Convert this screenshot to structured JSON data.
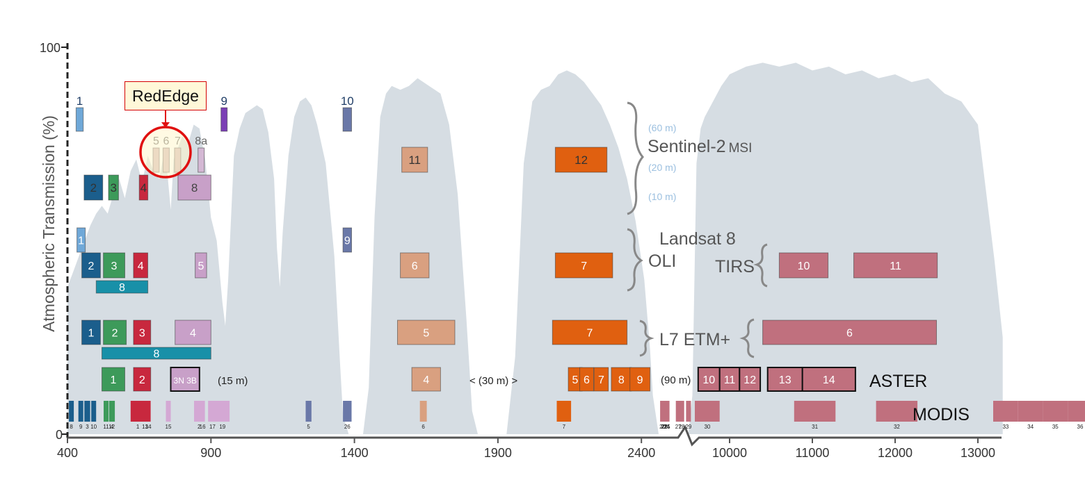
{
  "chart_data": {
    "type": "spectral band diagram",
    "ylabel": "Atmospheric Transmission (%)",
    "y_ticks": [
      "100",
      "0"
    ],
    "ylim": [
      0,
      100
    ],
    "x_ticks": [
      "400",
      "900",
      "1400",
      "1900",
      "2400",
      "10000",
      "11000",
      "12000",
      "13000"
    ],
    "x_axis_break": "between 2400 and 10000 (nm)",
    "transmission_curve": [
      [
        400,
        38
      ],
      [
        420,
        42
      ],
      [
        440,
        46
      ],
      [
        460,
        50
      ],
      [
        480,
        54
      ],
      [
        500,
        57
      ],
      [
        520,
        59
      ],
      [
        540,
        57
      ],
      [
        560,
        62
      ],
      [
        580,
        66
      ],
      [
        600,
        61
      ],
      [
        620,
        68
      ],
      [
        640,
        71
      ],
      [
        660,
        65
      ],
      [
        680,
        72
      ],
      [
        700,
        68
      ],
      [
        720,
        66
      ],
      [
        740,
        74
      ],
      [
        760,
        58
      ],
      [
        770,
        71
      ],
      [
        800,
        77
      ],
      [
        820,
        75
      ],
      [
        840,
        80
      ],
      [
        860,
        79
      ],
      [
        880,
        71
      ],
      [
        900,
        56
      ],
      [
        920,
        50
      ],
      [
        940,
        34
      ],
      [
        950,
        28
      ],
      [
        960,
        40
      ],
      [
        980,
        72
      ],
      [
        1000,
        79
      ],
      [
        1020,
        83
      ],
      [
        1040,
        84
      ],
      [
        1060,
        85
      ],
      [
        1080,
        84
      ],
      [
        1100,
        78
      ],
      [
        1120,
        66
      ],
      [
        1130,
        48
      ],
      [
        1140,
        38
      ],
      [
        1150,
        52
      ],
      [
        1170,
        72
      ],
      [
        1190,
        82
      ],
      [
        1210,
        86
      ],
      [
        1230,
        87
      ],
      [
        1250,
        85
      ],
      [
        1270,
        80
      ],
      [
        1300,
        70
      ],
      [
        1330,
        46
      ],
      [
        1350,
        18
      ],
      [
        1360,
        5
      ],
      [
        1380,
        0
      ],
      [
        1400,
        0
      ],
      [
        1430,
        0
      ],
      [
        1450,
        12
      ],
      [
        1470,
        56
      ],
      [
        1490,
        82
      ],
      [
        1510,
        88
      ],
      [
        1530,
        90
      ],
      [
        1560,
        89
      ],
      [
        1590,
        90
      ],
      [
        1620,
        92
      ],
      [
        1660,
        90
      ],
      [
        1700,
        88
      ],
      [
        1730,
        80
      ],
      [
        1760,
        62
      ],
      [
        1790,
        30
      ],
      [
        1810,
        6
      ],
      [
        1830,
        0
      ],
      [
        1890,
        0
      ],
      [
        1930,
        0
      ],
      [
        1960,
        20
      ],
      [
        1990,
        70
      ],
      [
        2020,
        86
      ],
      [
        2050,
        89
      ],
      [
        2080,
        90
      ],
      [
        2110,
        93
      ],
      [
        2140,
        94
      ],
      [
        2170,
        93
      ],
      [
        2200,
        91
      ],
      [
        2230,
        88
      ],
      [
        2260,
        85
      ],
      [
        2290,
        80
      ],
      [
        2320,
        74
      ],
      [
        2350,
        66
      ],
      [
        2380,
        55
      ],
      [
        2410,
        40
      ],
      [
        2430,
        22
      ],
      [
        2440,
        10
      ],
      [
        2460,
        0
      ],
      [
        2470,
        0
      ],
      [
        9500,
        0
      ],
      [
        9550,
        10
      ],
      [
        9600,
        70
      ],
      [
        9650,
        79
      ],
      [
        9700,
        82
      ],
      [
        9800,
        86
      ],
      [
        9900,
        90
      ],
      [
        10000,
        93
      ],
      [
        10200,
        95
      ],
      [
        10400,
        96
      ],
      [
        10600,
        95
      ],
      [
        10800,
        96
      ],
      [
        11000,
        94
      ],
      [
        11200,
        95
      ],
      [
        11400,
        93
      ],
      [
        11600,
        94
      ],
      [
        11800,
        92
      ],
      [
        12000,
        93
      ],
      [
        12200,
        91
      ],
      [
        12400,
        92
      ],
      [
        12600,
        88
      ],
      [
        12800,
        86
      ],
      [
        13000,
        80
      ],
      [
        13200,
        45
      ],
      [
        13300,
        25
      ]
    ],
    "redEdge_callout": "RedEdge",
    "sensors": {
      "sentinel2": {
        "label": "Sentinel-2",
        "label_suffix": "MSI",
        "resolution_labels": [
          "(60 m)",
          "(20 m)",
          "(10 m)"
        ],
        "bands": [
          {
            "label": "1",
            "start": 430,
            "end": 455,
            "row": "60m",
            "color": "#6fa8d8"
          },
          {
            "label": "9",
            "start": 935,
            "end": 955,
            "row": "60m",
            "color": "#7b3fb5"
          },
          {
            "label": "10",
            "start": 1360,
            "end": 1390,
            "row": "60m",
            "color": "#6a78a8"
          },
          {
            "label": "5",
            "start": 698,
            "end": 712,
            "row": "20m",
            "color": "#d4b8b8"
          },
          {
            "label": "6",
            "start": 733,
            "end": 748,
            "row": "20m",
            "color": "#d4b8b8"
          },
          {
            "label": "7",
            "start": 773,
            "end": 793,
            "row": "20m",
            "color": "#d4b8b8"
          },
          {
            "label": "8a",
            "start": 855,
            "end": 875,
            "row": "20m",
            "color": "#d4b8d4"
          },
          {
            "label": "11",
            "start": 1565,
            "end": 1655,
            "row": "20m",
            "color": "#d9a080"
          },
          {
            "label": "12",
            "start": 2100,
            "end": 2280,
            "row": "20m",
            "color": "#e06010"
          },
          {
            "label": "2",
            "start": 458,
            "end": 523,
            "row": "10m",
            "color": "#1b5e8c"
          },
          {
            "label": "3",
            "start": 543,
            "end": 578,
            "row": "10m",
            "color": "#3d9a5a"
          },
          {
            "label": "4",
            "start": 650,
            "end": 680,
            "row": "10m",
            "color": "#c8283e"
          },
          {
            "label": "8",
            "start": 785,
            "end": 900,
            "row": "10m",
            "color": "#c8a0c8"
          }
        ]
      },
      "landsat8": {
        "label": "Landsat 8",
        "label_oli": "OLI",
        "label_tirs": "TIRS",
        "bands": [
          {
            "label": "1",
            "start": 433,
            "end": 453,
            "row": "a",
            "color": "#6fa8d8"
          },
          {
            "label": "9",
            "start": 1360,
            "end": 1390,
            "row": "a",
            "color": "#6a78a8"
          },
          {
            "label": "2",
            "start": 450,
            "end": 515,
            "row": "b",
            "color": "#1b5e8c"
          },
          {
            "label": "3",
            "start": 525,
            "end": 600,
            "row": "b",
            "color": "#3d9a5a"
          },
          {
            "label": "4",
            "start": 630,
            "end": 680,
            "row": "b",
            "color": "#c8283e"
          },
          {
            "label": "5",
            "start": 845,
            "end": 885,
            "row": "b",
            "color": "#c8a0c8"
          },
          {
            "label": "6",
            "start": 1560,
            "end": 1660,
            "row": "b",
            "color": "#d9a080"
          },
          {
            "label": "7",
            "start": 2100,
            "end": 2300,
            "row": "b",
            "color": "#e06010"
          },
          {
            "label": "10",
            "start": 10600,
            "end": 11190,
            "row": "b",
            "color": "#c0707e"
          },
          {
            "label": "11",
            "start": 11500,
            "end": 12510,
            "row": "b",
            "color": "#c0707e"
          },
          {
            "label": "8",
            "start": 500,
            "end": 680,
            "row": "c",
            "color": "#1890a8"
          }
        ]
      },
      "l7etm": {
        "label": "L7 ETM+",
        "bands": [
          {
            "label": "1",
            "start": 450,
            "end": 515,
            "row": "a",
            "color": "#1b5e8c"
          },
          {
            "label": "2",
            "start": 525,
            "end": 605,
            "row": "a",
            "color": "#3d9a5a"
          },
          {
            "label": "3",
            "start": 630,
            "end": 690,
            "row": "a",
            "color": "#c8283e"
          },
          {
            "label": "4",
            "start": 775,
            "end": 900,
            "row": "a",
            "color": "#c8a0c8"
          },
          {
            "label": "5",
            "start": 1550,
            "end": 1750,
            "row": "a",
            "color": "#d9a080"
          },
          {
            "label": "7",
            "start": 2090,
            "end": 2350,
            "row": "a",
            "color": "#e06010"
          },
          {
            "label": "6",
            "start": 10400,
            "end": 12500,
            "row": "a",
            "color": "#c0707e"
          },
          {
            "label": "8",
            "start": 520,
            "end": 900,
            "row": "b",
            "color": "#1890a8"
          }
        ]
      },
      "aster": {
        "label": "ASTER",
        "res_15": "(15 m)",
        "res_30": "< (30 m) >",
        "res_90": "(90 m)",
        "bands": [
          {
            "label": "1",
            "start": 520,
            "end": 600,
            "color": "#3d9a5a"
          },
          {
            "label": "2",
            "start": 630,
            "end": 690,
            "color": "#c8283e"
          },
          {
            "label": "3N 3B",
            "start": 760,
            "end": 860,
            "color": "#c8a0c8"
          },
          {
            "label": "4",
            "start": 1600,
            "end": 1700,
            "color": "#d9a080"
          },
          {
            "label": "5",
            "start": 2145,
            "end": 2185,
            "color": "#e06010"
          },
          {
            "label": "6",
            "start": 2185,
            "end": 2225,
            "color": "#e06010"
          },
          {
            "label": "7",
            "start": 2235,
            "end": 2285,
            "color": "#e06010"
          },
          {
            "label": "8",
            "start": 2295,
            "end": 2365,
            "color": "#e06010"
          },
          {
            "label": "9",
            "start": 2360,
            "end": 2430,
            "color": "#e06010"
          },
          {
            "label": "10",
            "start": 9620,
            "end": 9880,
            "color": "#c0707e"
          },
          {
            "label": "11",
            "start": 9880,
            "end": 10120,
            "color": "#c0707e"
          },
          {
            "label": "12",
            "start": 10120,
            "end": 10370,
            "color": "#c0707e"
          },
          {
            "label": "13",
            "start": 10460,
            "end": 10880,
            "color": "#c0707e"
          },
          {
            "label": "14",
            "start": 10880,
            "end": 11520,
            "color": "#c0707e"
          }
        ]
      },
      "modis": {
        "label": "MODIS",
        "bands": [
          {
            "label": "8",
            "start": 405,
            "end": 420,
            "color": "#1b5e8c"
          },
          {
            "label": "9",
            "start": 438,
            "end": 448,
            "color": "#1b5e8c"
          },
          {
            "label": "3",
            "start": 459,
            "end": 479,
            "color": "#1b5e8c"
          },
          {
            "label": "10",
            "start": 483,
            "end": 493,
            "color": "#1b5e8c"
          },
          {
            "label": "11",
            "start": 526,
            "end": 536,
            "color": "#3d9a5a"
          },
          {
            "label": "12",
            "start": 546,
            "end": 556,
            "color": "#3d9a5a"
          },
          {
            "label": "4",
            "start": 545,
            "end": 565,
            "color": "#3d9a5a"
          },
          {
            "label": "1",
            "start": 620,
            "end": 670,
            "color": "#c8283e"
          },
          {
            "label": "13",
            "start": 662,
            "end": 672,
            "color": "#c8283e"
          },
          {
            "label": "14",
            "start": 673,
            "end": 683,
            "color": "#c8283e"
          },
          {
            "label": "15",
            "start": 743,
            "end": 753,
            "color": "#d4a8d4"
          },
          {
            "label": "2",
            "start": 841,
            "end": 876,
            "color": "#d4a8d4"
          },
          {
            "label": "16",
            "start": 862,
            "end": 877,
            "color": "#d4a8d4"
          },
          {
            "label": "17",
            "start": 890,
            "end": 920,
            "color": "#d4a8d4"
          },
          {
            "label": "19",
            "start": 915,
            "end": 965,
            "color": "#d4a8d4"
          },
          {
            "label": "5",
            "start": 1230,
            "end": 1250,
            "color": "#6a78a8"
          },
          {
            "label": "26",
            "start": 1360,
            "end": 1390,
            "color": "#6a78a8"
          },
          {
            "label": "6",
            "start": 1628,
            "end": 1652,
            "color": "#d9a080"
          },
          {
            "label": "7",
            "start": 2105,
            "end": 2155,
            "color": "#e06010"
          },
          {
            "label": "20",
            "start": 3660,
            "end": 3840,
            "color": "#c0707e"
          },
          {
            "label": "21",
            "start": 3929,
            "end": 3989,
            "color": "#c0707e"
          },
          {
            "label": "22",
            "start": 3929,
            "end": 3989,
            "color": "#c0707e"
          },
          {
            "label": "23",
            "start": 4020,
            "end": 4080,
            "color": "#c0707e"
          },
          {
            "label": "24",
            "start": 4433,
            "end": 4498,
            "color": "#c0707e"
          },
          {
            "label": "25",
            "start": 4482,
            "end": 4549,
            "color": "#c0707e"
          },
          {
            "label": "27",
            "start": 6535,
            "end": 6895,
            "color": "#c0707e"
          },
          {
            "label": "28",
            "start": 7175,
            "end": 7475,
            "color": "#c0707e"
          },
          {
            "label": "29",
            "start": 8400,
            "end": 8700,
            "color": "#c0707e"
          },
          {
            "label": "30",
            "start": 9580,
            "end": 9880,
            "color": "#c0707e"
          },
          {
            "label": "31",
            "start": 10780,
            "end": 11280,
            "color": "#c0707e"
          },
          {
            "label": "32",
            "start": 11770,
            "end": 12270,
            "color": "#c0707e"
          },
          {
            "label": "33",
            "start": 13185,
            "end": 13485,
            "color": "#c0707e"
          },
          {
            "label": "34",
            "start": 13485,
            "end": 13785,
            "color": "#c0707e"
          },
          {
            "label": "35",
            "start": 13785,
            "end": 14085,
            "color": "#c0707e"
          },
          {
            "label": "36",
            "start": 14085,
            "end": 14385,
            "color": "#c0707e"
          }
        ]
      }
    }
  }
}
